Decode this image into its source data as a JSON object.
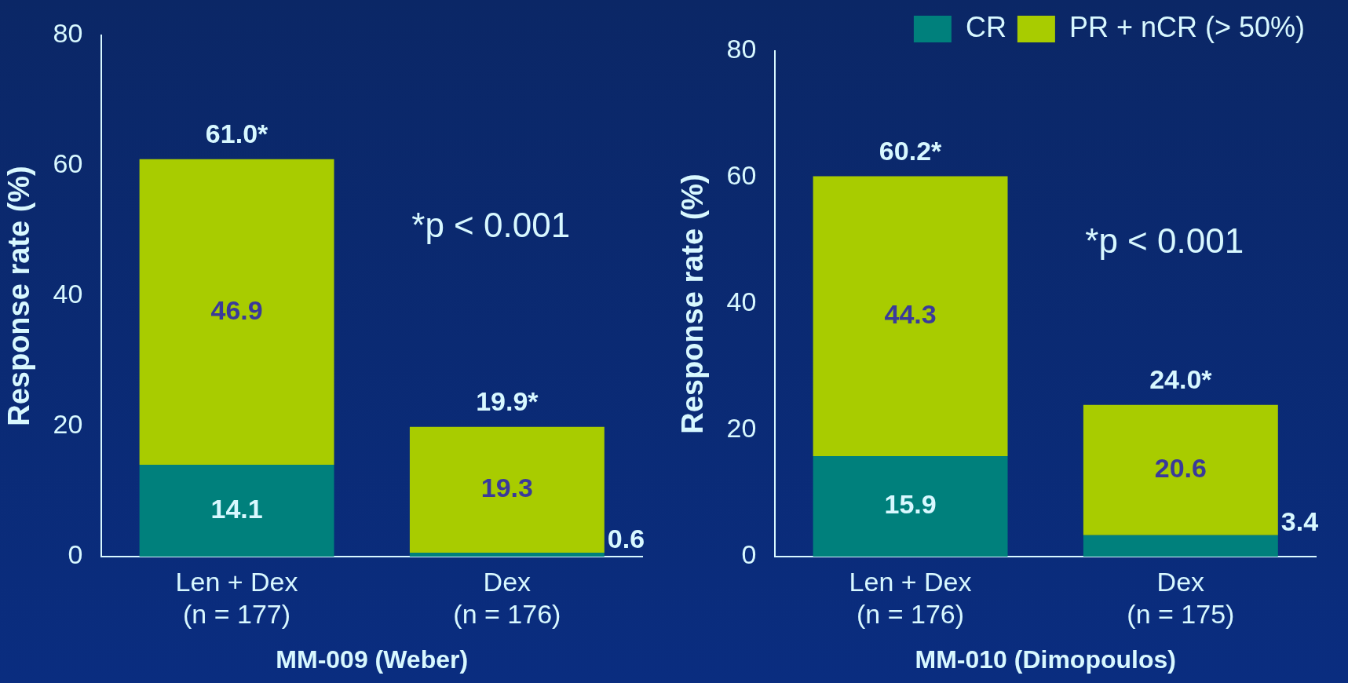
{
  "chart_data": [
    {
      "type": "bar",
      "stacked": true,
      "xlabel": "MM-009 (Weber)",
      "ylabel": "Response rate (%)",
      "categories": [
        "Len + Dex\n(n = 177)",
        "Dex\n(n = 176)"
      ],
      "series": [
        {
          "color": "#00807c",
          "values": [
            14.1,
            0.6
          ]
        },
        {
          "color": "#a8cc00",
          "values": [
            46.9,
            19.3
          ]
        }
      ],
      "ylim": [
        0,
        80
      ],
      "yticks": [
        0,
        20,
        40,
        60,
        80
      ],
      "data_labels": true,
      "totals": [
        "61.0*",
        "19.9*"
      ],
      "annotations": [
        "*p < 0.001"
      ],
      "legend": false
    },
    {
      "type": "bar",
      "stacked": true,
      "xlabel": "MM-010 (Dimopoulos)",
      "ylabel": "Response rate (%)",
      "categories": [
        "Len + Dex\n(n = 176)",
        "Dex\n(n = 175)"
      ],
      "series": [
        {
          "name": "CR",
          "color": "#00807c",
          "values": [
            15.9,
            3.4
          ]
        },
        {
          "name": "PR + nCR (> 50%)",
          "color": "#a8cc00",
          "values": [
            44.3,
            20.6
          ]
        }
      ],
      "ylim": [
        0,
        80
      ],
      "yticks": [
        0,
        20,
        40,
        60,
        80
      ],
      "data_labels": true,
      "totals": [
        "60.2*",
        "24.0*"
      ],
      "annotations": [
        "*p < 0.001"
      ],
      "legend": "top right"
    }
  ]
}
